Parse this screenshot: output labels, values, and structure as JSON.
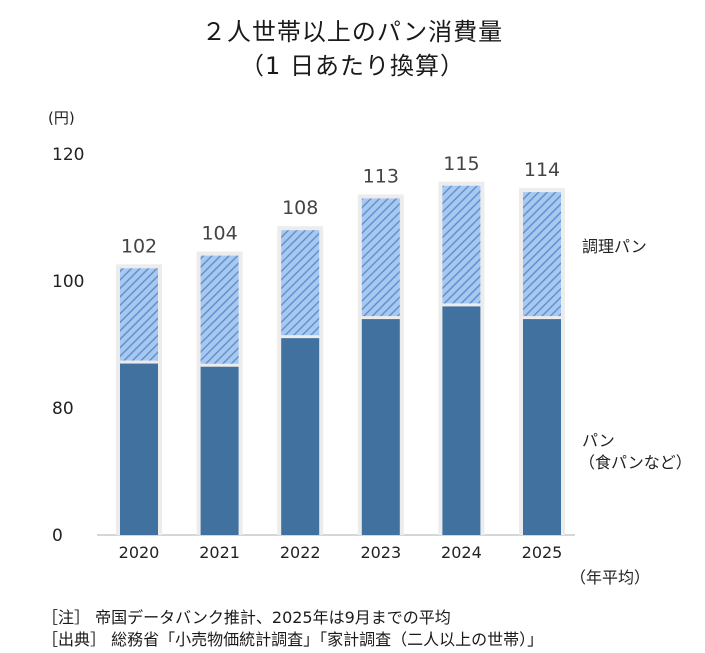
{
  "title_line1": "２人世帯以上のパン消費量",
  "title_line2": "（1 日あたり換算）",
  "chart_data": {
    "type": "bar",
    "stacked": true,
    "y_unit_label": "(円)",
    "y_tick_labels": [
      "0",
      "80",
      "100",
      "120"
    ],
    "ylim": [
      0,
      120
    ],
    "y_axis_break": "between 0 and 80",
    "x_unit_label": "（年平均）",
    "categories": [
      "2020",
      "2021",
      "2022",
      "2023",
      "2024",
      "2025"
    ],
    "series": [
      {
        "name": "パン\n（食パンなど）",
        "name_line1": "パン",
        "name_line2": "（食パンなど）",
        "color": "#41729f",
        "values": [
          87,
          86.5,
          91,
          94,
          96,
          94
        ]
      },
      {
        "name": "調理パン",
        "color": "#8fb6e6",
        "pattern": "diagonal-hatch",
        "values": [
          15,
          17.5,
          17,
          19,
          19,
          20
        ]
      }
    ],
    "totals": [
      102,
      104,
      108,
      113,
      115,
      114
    ]
  },
  "notes": {
    "line1": "［注］ 帝国データバンク推計、2025年は9月までの平均",
    "line2": "［出典］ 総務省「小売物価統計調査」「家計調査（二人以上の世帯）」"
  }
}
